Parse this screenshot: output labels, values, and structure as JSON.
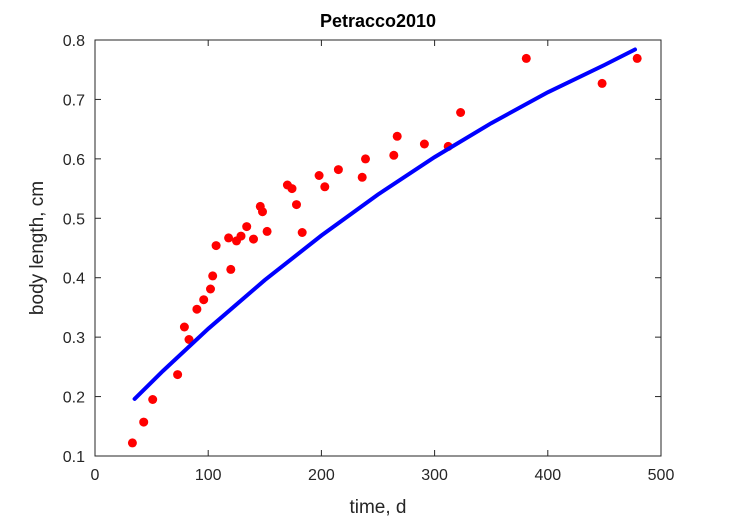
{
  "chart_data": {
    "type": "scatter",
    "title": "Petracco2010",
    "xlabel": "time, d",
    "ylabel": "body length, cm",
    "xlim": [
      0,
      500
    ],
    "ylim": [
      0.1,
      0.8
    ],
    "xticks": [
      "0",
      "100",
      "200",
      "300",
      "400",
      "500"
    ],
    "yticks": [
      "0.1",
      "0.2",
      "0.3",
      "0.4",
      "0.5",
      "0.6",
      "0.7",
      "0.8"
    ],
    "grid": false,
    "colors": {
      "points": "#ff0000",
      "curve": "#0000ff",
      "axis": "#262626"
    },
    "series": [
      {
        "kind": "scatter",
        "points": [
          [
            33,
            0.122
          ],
          [
            43,
            0.157
          ],
          [
            51,
            0.195
          ],
          [
            73,
            0.237
          ],
          [
            79,
            0.317
          ],
          [
            83,
            0.296
          ],
          [
            90,
            0.347
          ],
          [
            96,
            0.363
          ],
          [
            102,
            0.381
          ],
          [
            104,
            0.403
          ],
          [
            107,
            0.454
          ],
          [
            118,
            0.467
          ],
          [
            120,
            0.414
          ],
          [
            125,
            0.462
          ],
          [
            129,
            0.47
          ],
          [
            134,
            0.486
          ],
          [
            140,
            0.465
          ],
          [
            146,
            0.52
          ],
          [
            148,
            0.511
          ],
          [
            152,
            0.478
          ],
          [
            170,
            0.556
          ],
          [
            174,
            0.55
          ],
          [
            178,
            0.523
          ],
          [
            183,
            0.476
          ],
          [
            198,
            0.572
          ],
          [
            203,
            0.553
          ],
          [
            215,
            0.582
          ],
          [
            236,
            0.569
          ],
          [
            239,
            0.6
          ],
          [
            264,
            0.606
          ],
          [
            267,
            0.638
          ],
          [
            291,
            0.625
          ],
          [
            312,
            0.621
          ],
          [
            323,
            0.678
          ],
          [
            381,
            0.769
          ],
          [
            448,
            0.727
          ],
          [
            479,
            0.769
          ]
        ]
      },
      {
        "kind": "line",
        "points": [
          [
            35,
            0.196
          ],
          [
            60,
            0.243
          ],
          [
            100,
            0.314
          ],
          [
            150,
            0.396
          ],
          [
            200,
            0.471
          ],
          [
            250,
            0.54
          ],
          [
            300,
            0.603
          ],
          [
            350,
            0.66
          ],
          [
            400,
            0.712
          ],
          [
            450,
            0.758
          ],
          [
            477,
            0.784
          ]
        ]
      }
    ]
  }
}
